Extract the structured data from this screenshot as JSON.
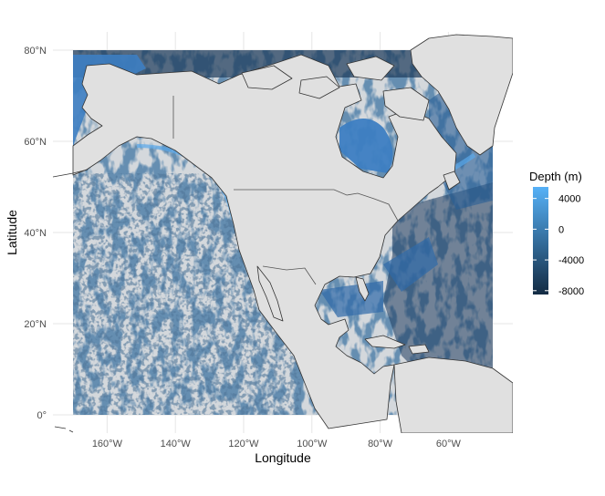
{
  "map": {
    "x_title": "Longitude",
    "y_title": "Latitude",
    "x_ticks": [
      "160°W",
      "140°W",
      "120°W",
      "100°W",
      "80°W",
      "60°W"
    ],
    "y_ticks": [
      "0°",
      "20°N",
      "40°N",
      "60°N",
      "80°N"
    ],
    "legend": {
      "title": "Depth (m)",
      "labels": [
        "4000",
        "0",
        "-4000",
        "-8000"
      ]
    },
    "colors": {
      "land": "#e0e0e0",
      "coastline": "#333333",
      "grid": "#e6e6e6",
      "shallow": "#56b1f7",
      "deep": "#132b43",
      "abyssal_plain": "#d4d8dc"
    }
  },
  "chart_data": {
    "type": "heatmap",
    "title": "",
    "xlabel": "Longitude",
    "ylabel": "Latitude",
    "xlim": [
      -170,
      -47
    ],
    "ylim": [
      0,
      80
    ],
    "x_ticks": [
      -160,
      -140,
      -120,
      -100,
      -80,
      -60
    ],
    "y_ticks": [
      0,
      20,
      40,
      60,
      80
    ],
    "fill_variable": "Depth (m)",
    "fill_scale": {
      "low": {
        "value": -8500,
        "color": "#132b43"
      },
      "high": {
        "value": 5500,
        "color": "#56b1f7"
      },
      "breaks": [
        4000,
        0,
        -4000,
        -8000
      ]
    },
    "legend_position": "right",
    "grid": true
  }
}
